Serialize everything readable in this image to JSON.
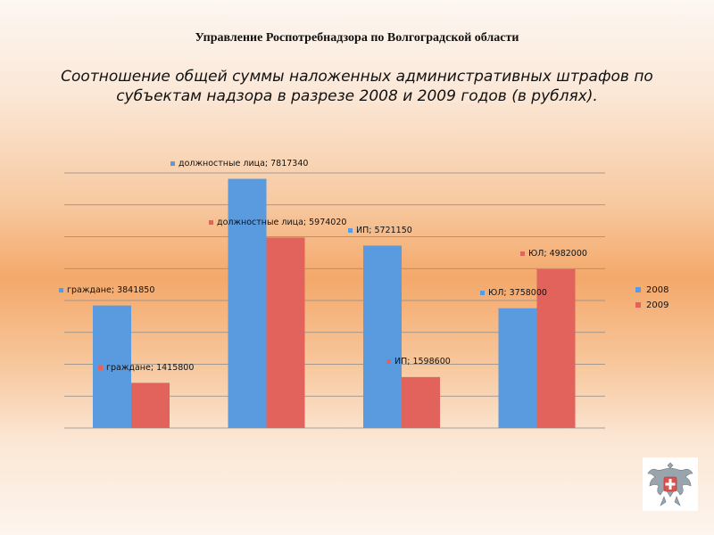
{
  "header": {
    "org_title": "Управление Роспотребнадзора по Волгоградской области",
    "chart_title": "Соотношение общей суммы наложенных административных штрафов по субъектам надзора в разрезе 2008 и 2009 годов (в рублях)."
  },
  "colors": {
    "s2008": "#5a9be0",
    "s2009": "#e2625c",
    "grid": "#8a8a8a"
  },
  "chart_data": {
    "type": "bar",
    "title": "",
    "xlabel": "",
    "ylabel": "",
    "categories": [
      "граждане",
      "должностные лица",
      "ИП",
      "ЮЛ"
    ],
    "series": [
      {
        "name": "2008",
        "values": [
          3841850,
          7817340,
          5721150,
          3758000
        ]
      },
      {
        "name": "2009",
        "values": [
          1415800,
          5974020,
          1598600,
          4982000
        ]
      }
    ],
    "data_labels": [
      [
        "граждане; 3841850",
        "должностные лица; 7817340",
        "ИП; 5721150",
        "ЮЛ; 3758000"
      ],
      [
        "граждане; 1415800",
        "должностные лица; 5974020",
        "ИП; 1598600",
        "ЮЛ; 4982000"
      ]
    ],
    "ylim": [
      0,
      8000000
    ],
    "y_axis_labels": false,
    "grid": true,
    "legend": "right"
  },
  "emblem": {
    "icon": "double-headed-eagle-emblem"
  }
}
